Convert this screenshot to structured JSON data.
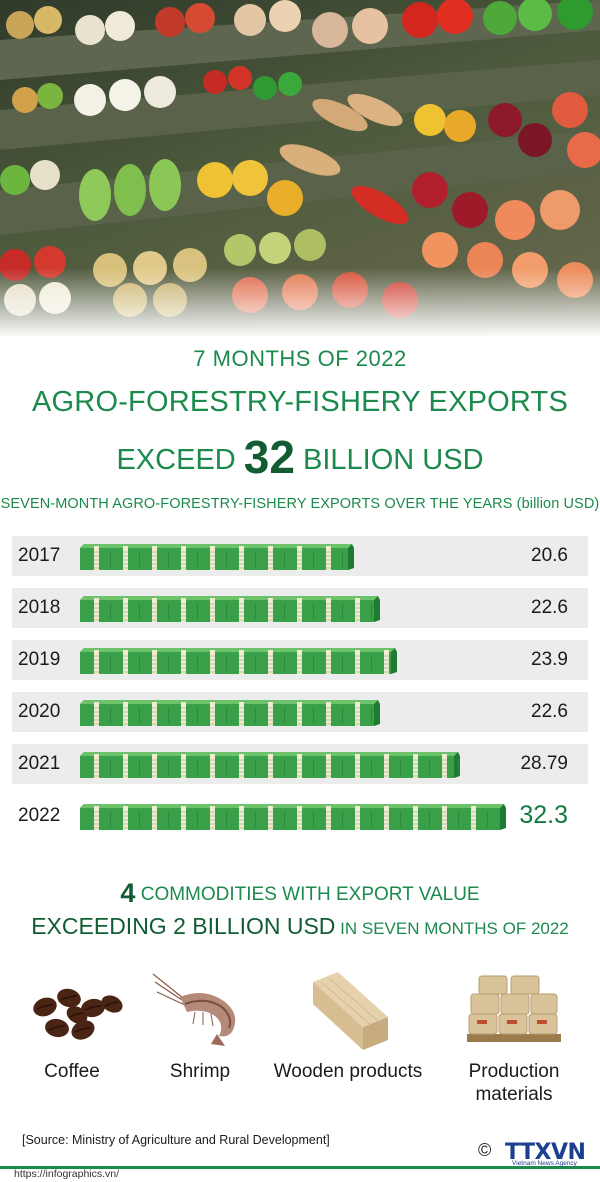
{
  "header": {
    "kicker": "7 MONTHS OF 2022",
    "title": "AGRO-FORESTRY-FISHERY EXPORTS",
    "title2_prefix": "EXCEED ",
    "title2_number": "32",
    "title2_suffix": " BILLION USD"
  },
  "chart_caption": {
    "text": "SEVEN-MONTH AGRO-FORESTRY-FISHERY EXPORTS OVER THE YEARS",
    "unit": "(billion USD)"
  },
  "chart_data": {
    "type": "bar",
    "orientation": "horizontal",
    "title": "SEVEN-MONTH AGRO-FORESTRY-FISHERY EXPORTS OVER THE YEARS (billion USD)",
    "categories": [
      "2017",
      "2018",
      "2019",
      "2020",
      "2021",
      "2022"
    ],
    "values": [
      20.6,
      22.6,
      23.9,
      22.6,
      28.79,
      32.3
    ],
    "value_labels": [
      "20.6",
      "22.6",
      "23.9",
      "22.6",
      "28.79",
      "32.3"
    ],
    "highlight_category": "2022",
    "bar_style": "banknote stacks",
    "colors": {
      "bar": "#3aa14a",
      "bar_dark": "#1f7a32",
      "band": "#f3ead2",
      "highlight_text": "#137a3f"
    }
  },
  "commodities": {
    "count": "4",
    "line1_suffix": " COMMODITIES WITH EXPORT VALUE",
    "line2_main": "EXCEEDING 2 BILLION USD",
    "line2_small": " IN SEVEN MONTHS OF 2022",
    "items": [
      {
        "label": "Coffee",
        "icon": "coffee-beans-icon"
      },
      {
        "label": "Shrimp",
        "icon": "shrimp-icon"
      },
      {
        "label": "Wooden products",
        "icon": "wooden-plank-icon"
      },
      {
        "label_line1": "Production",
        "label_line2": "materials",
        "icon": "cement-sacks-icon"
      }
    ]
  },
  "footer": {
    "source": "[Source: Ministry of Agriculture and Rural Development]",
    "site": "https://infographics.vn/",
    "copyright": "©",
    "brand": "TTXVN",
    "brand_sub": "Vietnam News Agency"
  },
  "colors": {
    "accent": "#1d8a4d",
    "accent_dark": "#115c33",
    "row_bg": "#ececec"
  }
}
